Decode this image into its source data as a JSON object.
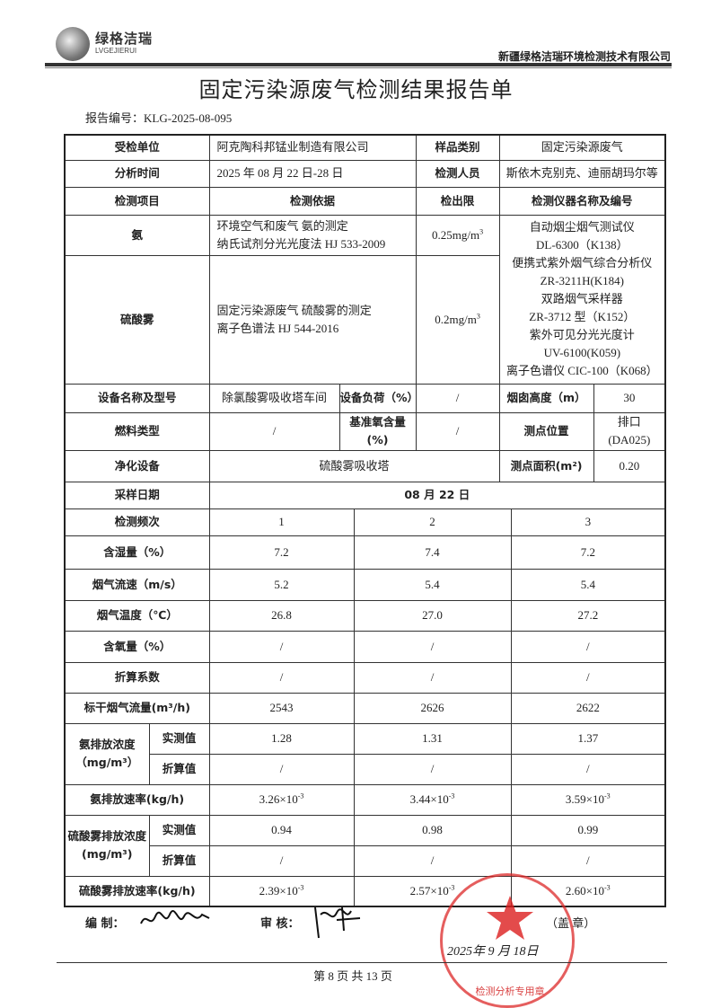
{
  "header": {
    "logo_cn": "绿格洁瑞",
    "logo_en": "LVGEJIERUI",
    "company": "新疆绿格洁瑞环境检测技术有限公司"
  },
  "title": "固定污染源废气检测结果报告单",
  "report_no": "报告编号：KLG-2025-08-095",
  "info": {
    "client_label": "受检单位",
    "client": "阿克陶科邦锰业制造有限公司",
    "sample_type_label": "样品类别",
    "sample_type": "固定污染源废气",
    "analysis_time_label": "分析时间",
    "analysis_time": "2025 年 08 月 22 日-28 日",
    "staff_label": "检测人员",
    "staff": "斯依木克别克、迪丽胡玛尔等",
    "item_label": "检测项目",
    "basis_label": "检测依据",
    "limit_label": "检出限",
    "instrument_label": "检测仪器名称及编号"
  },
  "methods": [
    {
      "item": "氨",
      "basis": [
        "环境空气和废气 氨的测定",
        "纳氏试剂分光光度法 HJ 533-2009"
      ],
      "limit": "0.25mg/m",
      "limit_sup": "3"
    },
    {
      "item": "硫酸雾",
      "basis": [
        "固定污染源废气 硫酸雾的测定",
        "离子色谱法 HJ 544-2016"
      ],
      "limit": "0.2mg/m",
      "limit_sup": "3"
    }
  ],
  "instruments": [
    "自动烟尘烟气测试仪",
    "DL-6300（K138）",
    "便携式紫外烟气综合分析仪",
    "ZR-3211H(K184)",
    "双路烟气采样器",
    "ZR-3712 型（K152）",
    "紫外可见分光光度计",
    "UV-6100(K059)",
    "离子色谱仪 CIC-100（K068）"
  ],
  "equipment": {
    "name_label": "设备名称及型号",
    "name": "除氯酸雾吸收塔车间",
    "load_label": "设备负荷（%）",
    "load": "/",
    "stack_label": "烟囱高度（m）",
    "stack": "30",
    "fuel_label": "燃料类型",
    "fuel": "/",
    "o2_label": "基准氧含量(%)",
    "o2": "/",
    "point_label": "测点位置",
    "point": [
      "排口",
      "(DA025)"
    ],
    "purify_label": "净化设备",
    "purify": "硫酸雾吸收塔",
    "area_label": "测点面积(m²)",
    "area": "0.20",
    "date_label": "采样日期",
    "date": "08 月 22 日"
  },
  "measurements": [
    {
      "label": "检测频次",
      "values": [
        "1",
        "2",
        "3"
      ]
    },
    {
      "label": "含湿量（%）",
      "values": [
        "7.2",
        "7.4",
        "7.2"
      ]
    },
    {
      "label": "烟气流速（m/s）",
      "values": [
        "5.2",
        "5.4",
        "5.4"
      ]
    },
    {
      "label": "烟气温度（℃）",
      "values": [
        "26.8",
        "27.0",
        "27.2"
      ]
    },
    {
      "label": "含氧量（%）",
      "values": [
        "/",
        "/",
        "/"
      ]
    },
    {
      "label": "折算系数",
      "values": [
        "/",
        "/",
        "/"
      ]
    },
    {
      "label": "标干烟气流量(m³/h)",
      "values": [
        "2543",
        "2626",
        "2622"
      ]
    }
  ],
  "nh3_conc": {
    "label": "氨排放浓度（mg/m³）",
    "measured_label": "实测值",
    "measured": [
      "1.28",
      "1.31",
      "1.37"
    ],
    "converted_label": "折算值",
    "converted": [
      "/",
      "/",
      "/"
    ]
  },
  "nh3_rate": {
    "label": "氨排放速率(kg/h)",
    "values": [
      "3.26×10",
      "3.44×10",
      "3.59×10"
    ],
    "exp": "-3"
  },
  "h2so4_conc": {
    "label": "硫酸雾排放浓度(mg/m³)",
    "measured_label": "实测值",
    "measured": [
      "0.94",
      "0.98",
      "0.99"
    ],
    "converted_label": "折算值",
    "converted": [
      "/",
      "/",
      "/"
    ]
  },
  "h2so4_rate": {
    "label": "硫酸雾排放速率(kg/h)",
    "values": [
      "2.39×10",
      "2.57×10",
      "2.60×10"
    ],
    "exp": "-3"
  },
  "footer": {
    "prepared_label": "编 制：",
    "reviewed_label": "审 核：",
    "seal_label": "（盖 章）",
    "date": "2025年 9 月 18日",
    "stamp_text": "检测分析专用章",
    "page": "第 8 页 共 13 页"
  },
  "colors": {
    "stamp": "#dc2828",
    "text": "#222222"
  }
}
